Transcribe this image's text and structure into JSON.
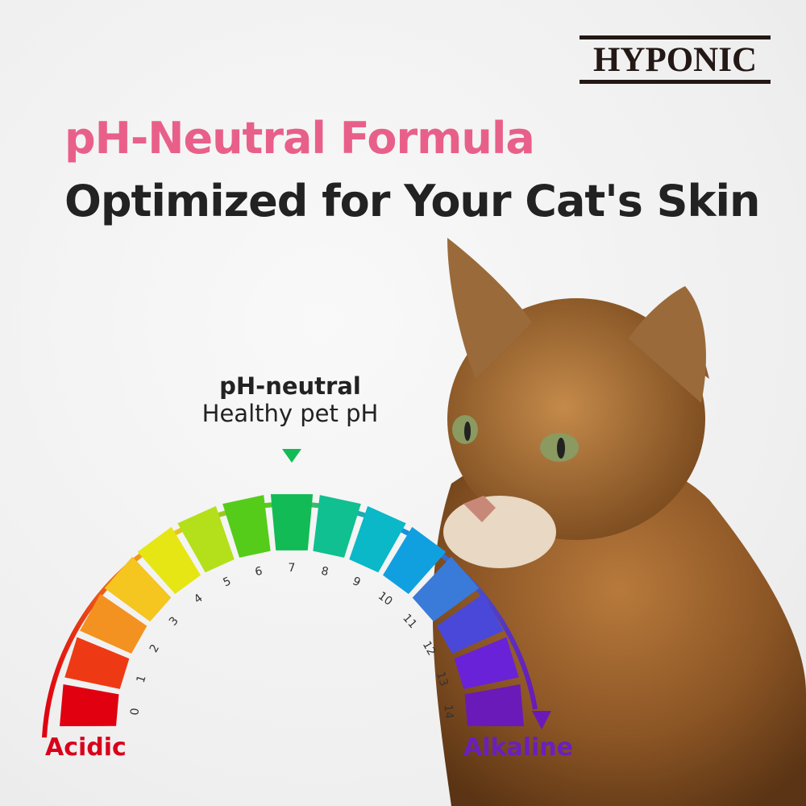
{
  "brand": {
    "logo_text": "HYPONIC"
  },
  "headline": {
    "line1": "pH-Neutral Formula",
    "line2": "Optimized for Your Cat's Skin",
    "line1_color": "#e8608a",
    "line2_color": "#222222"
  },
  "scale": {
    "marker_title": "pH-neutral",
    "marker_subtitle": "Healthy pet pH",
    "marker_value": 7,
    "marker_color": "#12bb55",
    "left_label": "Acidic",
    "right_label": "Alkaline",
    "left_color": "#d9001b",
    "right_color": "#6a1fc0",
    "ticks": [
      "0",
      "1",
      "2",
      "3",
      "4",
      "5",
      "6",
      "7",
      "8",
      "9",
      "10",
      "11",
      "12",
      "13",
      "14"
    ],
    "colors": [
      "#e00010",
      "#ee3a14",
      "#f39220",
      "#f5c520",
      "#e6e614",
      "#b3e01a",
      "#55cc1a",
      "#12bb55",
      "#10c090",
      "#0ab8c8",
      "#10a0e0",
      "#3a7ad8",
      "#4a48d8",
      "#6a22d8",
      "#6a1ab8"
    ]
  },
  "image": {
    "subject": "tabby cat"
  }
}
